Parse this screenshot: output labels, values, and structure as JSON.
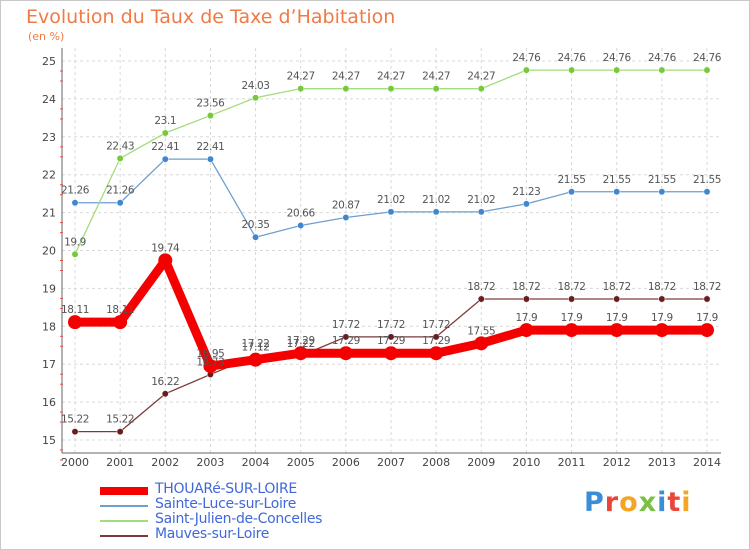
{
  "title": "Evolution du Taux de Taxe d’Habitation",
  "subtitle": "(en %)",
  "logo": {
    "text": "Proxiti",
    "colors": [
      "#3b8ed6",
      "#e8463a",
      "#f4a623",
      "#7bc043",
      "#3b8ed6",
      "#e8463a",
      "#f4a623"
    ]
  },
  "chart_data": {
    "type": "line",
    "title": "Evolution du Taux de Taxe d’Habitation",
    "ylabel": "(en %)",
    "x": [
      2000,
      2001,
      2002,
      2003,
      2004,
      2005,
      2006,
      2007,
      2008,
      2009,
      2010,
      2011,
      2012,
      2013,
      2014
    ],
    "x_labels": [
      "2000",
      "2001",
      "2002",
      "2003",
      "2004",
      "2005",
      "2006",
      "2007",
      "2008",
      "2009",
      "2010",
      "2011",
      "2012",
      "2013",
      "2014"
    ],
    "yticks": [
      "15",
      "16",
      "17",
      "18",
      "19",
      "20",
      "21",
      "22",
      "23",
      "24",
      "25"
    ],
    "ylim": [
      15,
      25
    ],
    "grid": true,
    "legend_position": "bottom-left",
    "series": [
      {
        "name": "THOUARé-SUR-LOIRE",
        "color": "#f50000",
        "thick": true,
        "values": [
          18.11,
          18.11,
          19.74,
          16.95,
          17.12,
          17.29,
          17.29,
          17.29,
          17.29,
          17.55,
          17.9,
          17.9,
          17.9,
          17.9,
          17.9
        ],
        "labels": [
          "18.11",
          "18.11",
          "19.74",
          "16.95",
          "17.12",
          "17.29",
          "17.29",
          "17.29",
          "17.29",
          "17.55",
          "17.9",
          "17.9",
          "17.9",
          "17.9",
          "17.9"
        ]
      },
      {
        "name": "Sainte-Luce-sur-Loire",
        "color": "#6e9fcf",
        "marker": "#3f88d0",
        "values": [
          21.26,
          21.26,
          22.41,
          22.41,
          20.35,
          20.66,
          20.87,
          21.02,
          21.02,
          21.02,
          21.23,
          21.55,
          21.55,
          21.55,
          21.55
        ],
        "labels": [
          "21.26",
          "21.26",
          "22.41",
          "22.41",
          "20.35",
          "20.66",
          "20.87",
          "21.02",
          "21.02",
          "21.02",
          "21.23",
          "21.55",
          "21.55",
          "21.55",
          "21.55"
        ]
      },
      {
        "name": "Saint-Julien-de-Concelles",
        "color": "#a3dc7a",
        "marker": "#77c83a",
        "values": [
          19.9,
          22.43,
          23.1,
          23.56,
          24.03,
          24.27,
          24.27,
          24.27,
          24.27,
          24.27,
          24.76,
          24.76,
          24.76,
          24.76,
          24.76
        ],
        "labels": [
          "19.9",
          "22.43",
          "23.1",
          "23.56",
          "24.03",
          "24.27",
          "24.27",
          "24.27",
          "24.27",
          "24.27",
          "24.76",
          "24.76",
          "24.76",
          "24.76",
          "24.76"
        ]
      },
      {
        "name": "Mauves-sur-Loire",
        "color": "#7d3a3a",
        "marker": "#6a1d1d",
        "values": [
          15.22,
          15.22,
          16.22,
          16.73,
          17.22,
          17.22,
          17.72,
          17.72,
          17.72,
          18.72,
          18.72,
          18.72,
          18.72,
          18.72,
          18.72
        ],
        "labels": [
          "15.22",
          "15.22",
          "16.22",
          "16.73",
          "17.22",
          "17.22",
          "17.72",
          "17.72",
          "17.72",
          "18.72",
          "18.72",
          "18.72",
          "18.72",
          "18.72",
          "18.72"
        ]
      }
    ]
  }
}
